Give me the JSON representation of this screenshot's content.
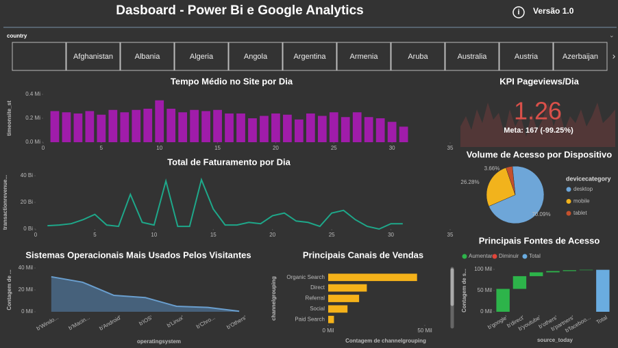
{
  "header": {
    "title": "Dasboard - Power Bi e Google Analytics",
    "version": "Versão 1.0"
  },
  "slicer": {
    "label": "country",
    "items": [
      "Afghanistan",
      "Albania",
      "Algeria",
      "Angola",
      "Argentina",
      "Armenia",
      "Aruba",
      "Australia",
      "Austria",
      "Azerbaijan"
    ]
  },
  "chart_data": [
    {
      "type": "bar",
      "title": "Tempo Médio no Site por Dia",
      "ylabel": "timeonsite_st",
      "color": "#a01caa",
      "x": [
        1,
        2,
        3,
        4,
        5,
        6,
        7,
        8,
        9,
        10,
        11,
        12,
        13,
        14,
        15,
        16,
        17,
        18,
        19,
        20,
        21,
        22,
        23,
        24,
        25,
        26,
        27,
        28,
        29,
        30,
        31
      ],
      "values": [
        0.26,
        0.25,
        0.24,
        0.26,
        0.23,
        0.27,
        0.25,
        0.27,
        0.28,
        0.35,
        0.28,
        0.25,
        0.27,
        0.26,
        0.27,
        0.24,
        0.24,
        0.2,
        0.22,
        0.24,
        0.23,
        0.19,
        0.24,
        0.22,
        0.25,
        0.21,
        0.25,
        0.21,
        0.2,
        0.17,
        0.13
      ],
      "xlim": [
        0,
        35
      ],
      "xticks": [
        0,
        5,
        10,
        15,
        20,
        25,
        30,
        35
      ],
      "ylim": [
        0,
        0.4
      ],
      "yticks": [
        {
          "value": 0,
          "label": "0.0 Mi"
        },
        {
          "value": 0.2,
          "label": "0.2 Mi"
        },
        {
          "value": 0.4,
          "label": "0.4 Mi"
        }
      ]
    },
    {
      "type": "line",
      "title": "Total de Faturamento por Dia",
      "ylabel": "transactionrevenue...",
      "color": "#1ea88a",
      "x": [
        1,
        2,
        3,
        4,
        5,
        6,
        7,
        8,
        9,
        10,
        11,
        12,
        13,
        14,
        15,
        16,
        17,
        18,
        19,
        20,
        21,
        22,
        23,
        24,
        25,
        26,
        27,
        28,
        29,
        30,
        31
      ],
      "values": [
        2.5,
        3,
        4,
        7,
        11,
        3,
        2,
        26,
        5,
        3,
        36,
        2,
        2,
        37,
        15,
        3,
        3,
        5,
        4,
        10,
        12,
        6,
        5,
        2,
        12,
        14,
        7,
        2,
        0,
        4,
        4
      ],
      "xlim": [
        0,
        35
      ],
      "xticks": [
        0,
        5,
        10,
        15,
        20,
        25,
        30,
        35
      ],
      "ylim": [
        0,
        40
      ],
      "yticks": [
        {
          "value": 0,
          "label": "0 Bi"
        },
        {
          "value": 20,
          "label": "20 Bi"
        },
        {
          "value": 40,
          "label": "40 Bi"
        }
      ]
    },
    {
      "type": "kpi",
      "title": "KPI Pageviews/Dia",
      "value": 1.26,
      "value_label": "1.26",
      "goal": "Meta: 167 (-99.25%)",
      "color": "#d9504a"
    },
    {
      "type": "pie",
      "title": "Volume de Acesso por Dispositivo",
      "legend_title": "devicecategory",
      "categories": [
        "desktop",
        "mobile",
        "tablet"
      ],
      "values": [
        70.09,
        26.28,
        3.66
      ],
      "value_labels": [
        "70.09%",
        "26.28%",
        "3.66%"
      ],
      "colors": [
        "#6ea6d8",
        "#f2b31c",
        "#c4502c"
      ]
    },
    {
      "type": "area",
      "title": "Sistemas Operacionais Mais Usados Pelos Visitantes",
      "ylabel": "Contagem de ...",
      "xlabel": "operatingsystem",
      "color": "#6a9fcf",
      "categories": [
        "b'Windo...",
        "b'Macin...",
        "b'Android'",
        "b'iOS'",
        "b'Linux'",
        "b'Chro...",
        "b'Others'"
      ],
      "values": [
        32,
        27,
        15,
        13,
        5,
        4,
        0.5
      ],
      "ylim": [
        0,
        40
      ],
      "yticks": [
        {
          "value": 0,
          "label": "0 Mil"
        },
        {
          "value": 20,
          "label": "20 Mil"
        },
        {
          "value": 40,
          "label": "40 Mil"
        }
      ]
    },
    {
      "type": "hbar",
      "title": "Principais Canais de Vendas",
      "ylabel": "channelgrouping",
      "xlabel": "Contagem de channelgrouping",
      "color": "#f5b21a",
      "categories": [
        "Organic Search",
        "Direct",
        "Referral",
        "Social",
        "Paid Search"
      ],
      "values": [
        46,
        20,
        16,
        10,
        3
      ],
      "xlim": [
        0,
        50
      ],
      "xticks": [
        {
          "value": 0,
          "label": "0 Mil"
        },
        {
          "value": 50,
          "label": "50 Mil"
        }
      ]
    },
    {
      "type": "waterfall",
      "title": "Principais Fontes de Acesso",
      "ylabel": "Contagem de s...",
      "xlabel": "source_today",
      "legend": [
        {
          "name": "Aumentar",
          "color": "#2db44a"
        },
        {
          "name": "Diminuir",
          "color": "#e0453a"
        },
        {
          "name": "Total",
          "color": "#6aace0"
        }
      ],
      "categories": [
        "b'google'",
        "b'direct'",
        "b'youtube'",
        "b'others'",
        "b'partners'",
        "b'faceboo...",
        "Total"
      ],
      "values": [
        54,
        30,
        9,
        3,
        2,
        1,
        99
      ],
      "kinds": [
        "Aumentar",
        "Aumentar",
        "Aumentar",
        "Aumentar",
        "Aumentar",
        "Aumentar",
        "Total"
      ],
      "ylim": [
        0,
        100
      ],
      "yticks": [
        {
          "value": 0,
          "label": "0 Mil"
        },
        {
          "value": 50,
          "label": "50 Mil"
        },
        {
          "value": 100,
          "label": "100 Mil"
        }
      ]
    }
  ]
}
